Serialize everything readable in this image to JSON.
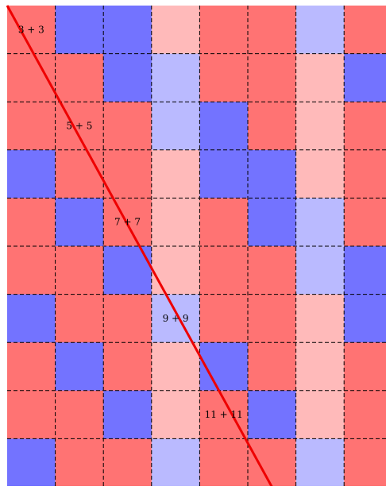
{
  "colors": {
    "R": "#ff7373",
    "r": "#ffbaba",
    "B": "#7373ff",
    "b": "#babaff",
    "grid": "#000000",
    "diagonal": "#ee0000"
  },
  "grid": {
    "rows": 10,
    "cols": 8,
    "cells": [
      "RBBrRRbR",
      "RRBbRRrB",
      "RRRbBRrR",
      "BRRrBBrR",
      "RBRrRBbR",
      "RRBrRRbB",
      "BRRbRRrB",
      "RBRrBRrR",
      "RRBrRBrR",
      "BRRbRRbR"
    ]
  },
  "labels": [
    {
      "text": "3 + 3",
      "row": 0,
      "col": 0
    },
    {
      "text": "5 + 5",
      "row": 2,
      "col": 1
    },
    {
      "text": "7 + 7",
      "row": 4,
      "col": 2
    },
    {
      "text": "9 + 9",
      "row": 6,
      "col": 3
    },
    {
      "text": "11 + 11",
      "row": 8,
      "col": 4
    }
  ]
}
